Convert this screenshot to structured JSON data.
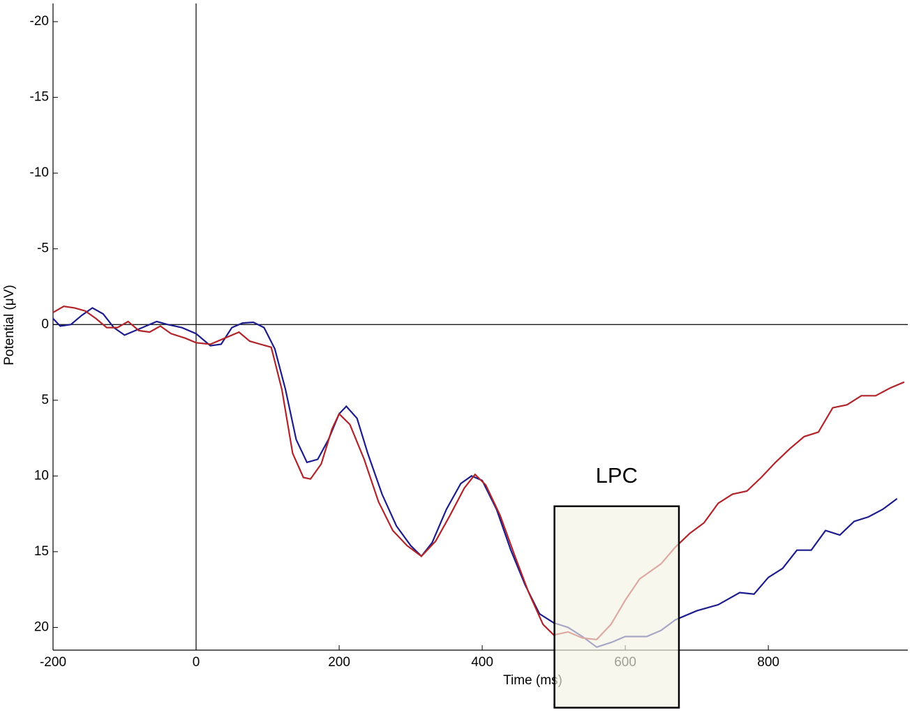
{
  "chart_data": {
    "type": "line",
    "xlabel": "Time (ms)",
    "ylabel": "Potential (μV)",
    "xlim": [
      -200,
      995
    ],
    "ylim": [
      -21.2,
      21.5
    ],
    "y_inverted": true,
    "zero_lines": true,
    "xticks": [
      -200,
      0,
      200,
      400,
      600,
      800
    ],
    "yticks": [
      -20,
      -15,
      -10,
      -5,
      0,
      5,
      10,
      15,
      20
    ],
    "series": [
      {
        "color": "#1c1c8c",
        "x": [
          -200,
          -190,
          -175,
          -160,
          -145,
          -130,
          -115,
          -100,
          -85,
          -70,
          -55,
          -40,
          -20,
          0,
          20,
          35,
          50,
          65,
          80,
          95,
          110,
          125,
          140,
          155,
          170,
          185,
          200,
          210,
          225,
          240,
          260,
          280,
          300,
          315,
          330,
          350,
          370,
          385,
          400,
          420,
          440,
          460,
          480,
          500,
          520,
          540,
          560,
          580,
          600,
          630,
          650,
          670,
          700,
          730,
          760,
          780,
          800,
          820,
          840,
          860,
          880,
          900,
          920,
          940,
          960,
          980
        ],
        "values": [
          -0.4,
          0.1,
          0,
          -0.6,
          -1.1,
          -0.7,
          0.2,
          0.7,
          0.4,
          0.1,
          -0.2,
          0,
          0.2,
          0.6,
          1.4,
          1.3,
          0.2,
          -0.1,
          -0.15,
          0.2,
          1.6,
          4.3,
          7.6,
          9.1,
          8.9,
          7.6,
          5.9,
          5.4,
          6.2,
          8.5,
          11.2,
          13.3,
          14.6,
          15.3,
          14.4,
          12.2,
          10.5,
          10.0,
          10.3,
          12.2,
          14.9,
          17.2,
          19.1,
          19.7,
          20.0,
          20.6,
          21.3,
          21.0,
          20.6,
          20.6,
          20.2,
          19.5,
          18.9,
          18.5,
          17.7,
          17.8,
          16.7,
          16.1,
          14.9,
          14.9,
          13.6,
          13.9,
          13.0,
          12.7,
          12.2,
          11.5
        ]
      },
      {
        "color": "#b0242a",
        "x": [
          -200,
          -185,
          -170,
          -155,
          -140,
          -125,
          -110,
          -95,
          -80,
          -65,
          -50,
          -35,
          -15,
          0,
          20,
          40,
          60,
          75,
          90,
          105,
          120,
          135,
          150,
          160,
          175,
          190,
          200,
          215,
          235,
          255,
          275,
          295,
          315,
          335,
          355,
          375,
          390,
          405,
          425,
          445,
          465,
          485,
          500,
          520,
          540,
          560,
          580,
          600,
          620,
          650,
          670,
          690,
          710,
          730,
          750,
          770,
          790,
          810,
          830,
          850,
          870,
          890,
          910,
          930,
          950,
          970,
          990
        ],
        "values": [
          -0.8,
          -1.2,
          -1.1,
          -0.9,
          -0.4,
          0.2,
          0.2,
          -0.2,
          0.4,
          0.5,
          0.1,
          0.6,
          0.9,
          1.2,
          1.3,
          0.9,
          0.5,
          1.1,
          1.3,
          1.5,
          4.3,
          8.5,
          10.1,
          10.2,
          9.2,
          6.9,
          5.9,
          6.6,
          8.9,
          11.7,
          13.6,
          14.6,
          15.3,
          14.3,
          12.6,
          10.8,
          9.9,
          10.6,
          12.6,
          15.2,
          17.7,
          19.8,
          20.5,
          20.3,
          20.7,
          20.8,
          19.8,
          18.2,
          16.8,
          15.8,
          14.7,
          13.8,
          13.1,
          11.8,
          11.2,
          11.0,
          10.1,
          9.1,
          8.2,
          7.4,
          7.1,
          5.5,
          5.3,
          4.7,
          4.7,
          4.2,
          3.8
        ]
      }
    ],
    "annotation": {
      "label": "LPC",
      "x_range": [
        501,
        675
      ],
      "y_range": [
        12,
        25.3
      ],
      "color": "#f5f2e4"
    }
  }
}
